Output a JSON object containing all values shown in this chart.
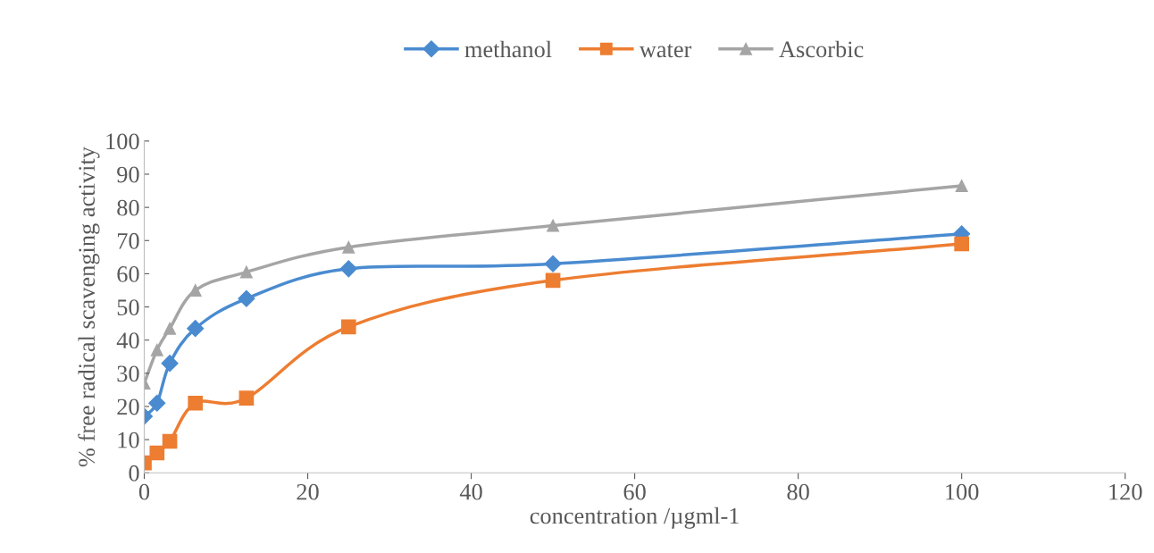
{
  "chart_data": {
    "type": "line",
    "xlabel": "concentration /µgml-1",
    "ylabel": "% free radical scavenging activity",
    "x": [
      0,
      1.5625,
      3.125,
      6.25,
      12.5,
      25,
      50,
      100
    ],
    "series": [
      {
        "name": "methanol",
        "color": "#4a8bd0",
        "marker": "diamond",
        "values": [
          17,
          21,
          33,
          43.5,
          52.5,
          61.5,
          63,
          72
        ]
      },
      {
        "name": "water",
        "color": "#ed7d31",
        "marker": "square",
        "values": [
          3,
          6,
          9.5,
          21,
          22.5,
          44,
          58,
          69
        ]
      },
      {
        "name": "Ascorbic",
        "color": "#a5a5a5",
        "marker": "triangle",
        "values": [
          27,
          37,
          43.5,
          55,
          60.5,
          68,
          74.5,
          86.5
        ]
      }
    ],
    "xlim": [
      0,
      120
    ],
    "xticks": [
      0,
      20,
      40,
      60,
      80,
      100,
      120
    ],
    "ylim": [
      0,
      100
    ],
    "yticks": [
      0,
      10,
      20,
      30,
      40,
      50,
      60,
      70,
      80,
      90,
      100
    ],
    "grid": false,
    "legend": "top",
    "line_style": "solid"
  }
}
